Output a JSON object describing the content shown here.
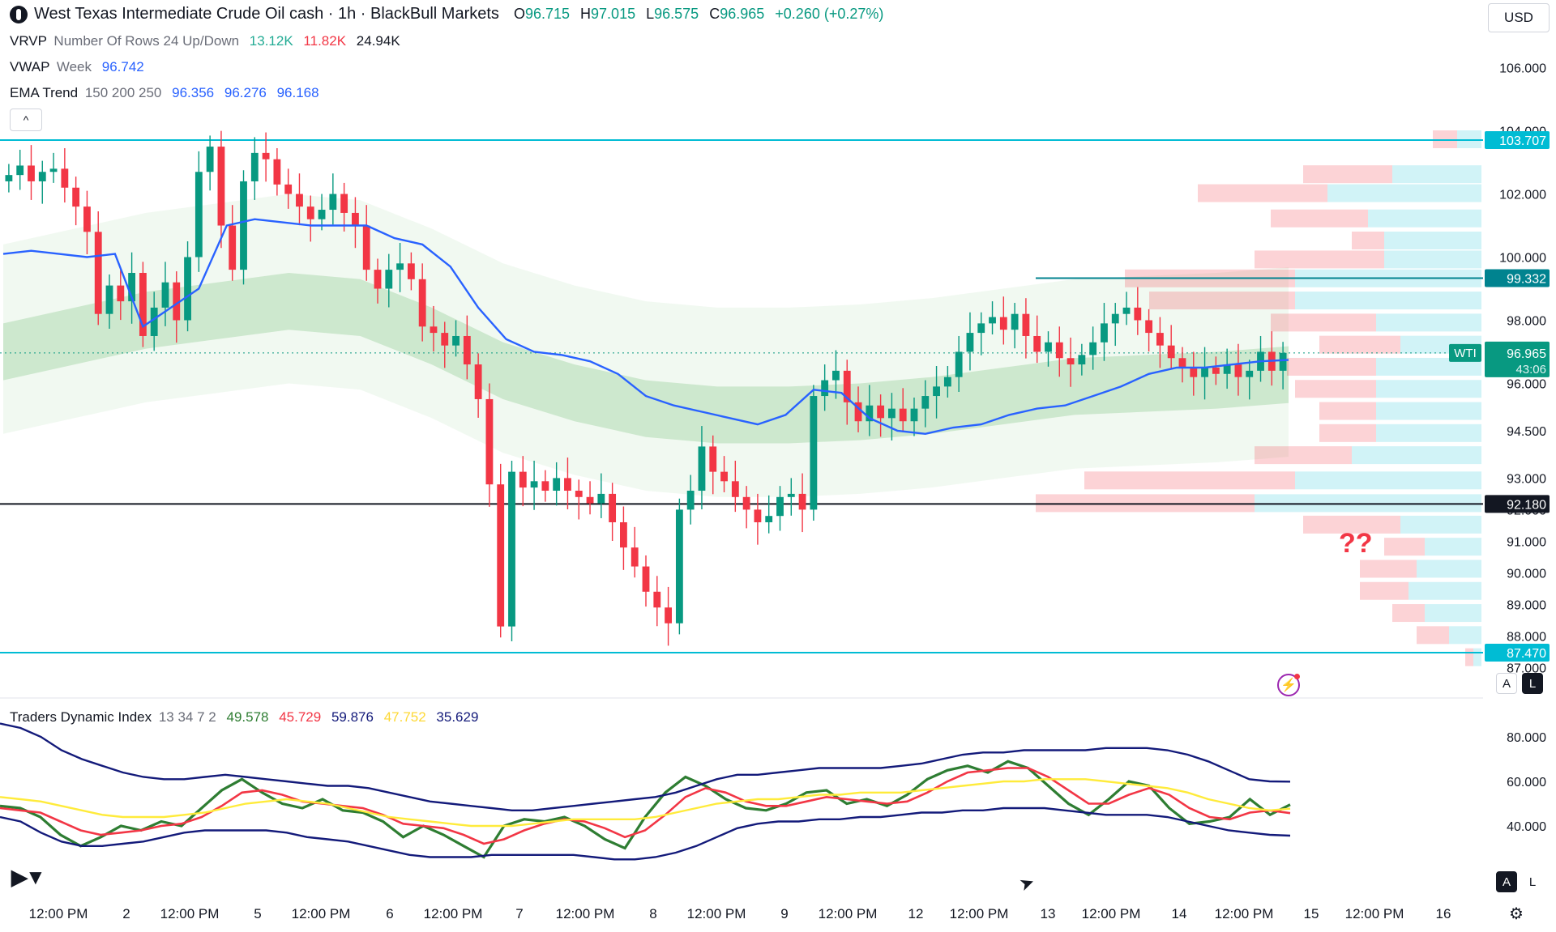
{
  "header": {
    "title": "West Texas Intermediate Crude Oil cash · 1h · BlackBull Markets",
    "o_label": "O",
    "o": "96.715",
    "h_label": "H",
    "h": "97.015",
    "l_label": "L",
    "l": "96.575",
    "c_label": "C",
    "c": "96.965",
    "change": "+0.260 (+0.27%)",
    "currency": "USD"
  },
  "indicators": {
    "vrvp": {
      "name": "VRVP",
      "params": "Number Of Rows 24 Up/Down",
      "v1": "13.12K",
      "v2": "11.82K",
      "v3": "24.94K"
    },
    "vwap": {
      "name": "VWAP",
      "params": "Week",
      "v1": "96.742"
    },
    "ema": {
      "name": "EMA Trend",
      "params": "150 200 250",
      "v1": "96.356",
      "v2": "96.276",
      "v3": "96.168"
    },
    "tdi": {
      "name": "Traders Dynamic Index",
      "params": "13 34 7 2",
      "v1": "49.578",
      "v2": "45.729",
      "v3": "59.876",
      "v4": "47.752",
      "v5": "35.629"
    }
  },
  "colors": {
    "up": "#089981",
    "down": "#f23645",
    "vwap": "#2962ff",
    "level": "#00bcd4",
    "tdi_green": "#2e7d32",
    "tdi_red": "#f23645",
    "tdi_navy": "#131a7a",
    "tdi_yellow": "#ffeb3b"
  },
  "controls": {
    "collapse_icon": "chevron-up-icon",
    "auto": "A",
    "log": "L",
    "settings_icon": "gear-icon",
    "brand": "tradingview-logo"
  },
  "annotation": "??",
  "chart_data": [
    {
      "type": "candlestick",
      "symbol_tag": "WTI",
      "last_price": "96.965",
      "countdown": "43:06",
      "y_ticks": [
        "106.000",
        "104.000",
        "102.000",
        "100.000",
        "98.000",
        "96.000",
        "94.500",
        "93.000",
        "92.000",
        "91.000",
        "90.000",
        "89.000",
        "88.000",
        "87.000"
      ],
      "ylim": [
        86.8,
        107.0
      ],
      "x_ticks": [
        "12:00 PM",
        "2",
        "12:00 PM",
        "5",
        "12:00 PM",
        "6",
        "12:00 PM",
        "7",
        "12:00 PM",
        "8",
        "12:00 PM",
        "9",
        "12:00 PM",
        "12",
        "12:00 PM",
        "13",
        "12:00 PM",
        "14",
        "12:00 PM",
        "15",
        "12:00 PM",
        "16"
      ],
      "horizontal_levels": [
        {
          "price": 103.707,
          "label": "103.707",
          "color": "#00bcd4"
        },
        {
          "price": 99.332,
          "label": "99.332",
          "color": "#00838f"
        },
        {
          "price": 92.18,
          "label": "92.180",
          "color": "#131722"
        },
        {
          "price": 87.47,
          "label": "87.470",
          "color": "#00bcd4"
        }
      ],
      "price_path": [
        102.6,
        102.9,
        102.4,
        102.7,
        102.8,
        102.2,
        101.6,
        100.8,
        98.2,
        99.1,
        98.6,
        99.5,
        97.5,
        98.4,
        99.2,
        98.0,
        100.0,
        102.7,
        103.5,
        101.0,
        99.6,
        102.4,
        103.3,
        103.1,
        102.3,
        102.0,
        101.6,
        101.2,
        101.5,
        102.0,
        101.4,
        101.0,
        99.6,
        99.0,
        99.6,
        99.8,
        99.3,
        97.8,
        97.6,
        97.2,
        97.5,
        96.6,
        95.5,
        92.8,
        88.3,
        93.2,
        92.7,
        92.9,
        92.6,
        93.0,
        92.6,
        92.4,
        92.2,
        92.5,
        91.6,
        90.8,
        90.2,
        89.4,
        88.9,
        88.4,
        92.0,
        92.6,
        94.0,
        93.2,
        92.9,
        92.4,
        92.0,
        91.6,
        91.8,
        92.4,
        92.5,
        92.0,
        95.6,
        96.1,
        96.4,
        95.4,
        94.8,
        95.3,
        94.9,
        95.2,
        94.8,
        95.2,
        95.6,
        95.9,
        96.2,
        97.0,
        97.6,
        97.9,
        98.1,
        97.7,
        98.2,
        97.5,
        97.0,
        97.3,
        96.8,
        96.6,
        96.9,
        97.3,
        97.9,
        98.2,
        98.4,
        98.0,
        97.6,
        97.2,
        96.8,
        96.5,
        96.2,
        96.5,
        96.3,
        96.6,
        96.2,
        96.4,
        97.0,
        96.4,
        96.965
      ],
      "vwap_path": [
        100.1,
        100.2,
        100.1,
        100.0,
        100.1,
        97.8,
        98.4,
        99.0,
        101.0,
        101.2,
        101.1,
        101.0,
        101.0,
        101.0,
        100.6,
        100.4,
        99.7,
        98.4,
        97.4,
        97.0,
        96.9,
        96.7,
        96.3,
        95.6,
        95.3,
        95.1,
        94.9,
        94.7,
        95.0,
        95.8,
        95.7,
        94.9,
        94.5,
        94.4,
        94.6,
        94.7,
        95.0,
        95.2,
        95.3,
        95.6,
        95.9,
        96.3,
        96.5,
        96.5,
        96.6,
        96.7,
        96.742
      ],
      "ema_path": [
        97.0,
        97.5,
        98.0,
        98.3,
        98.6,
        98.4,
        97.5,
        96.4,
        95.7,
        95.2,
        95.0,
        95.0,
        95.1,
        95.3,
        95.6,
        95.9,
        96.0,
        96.1,
        96.276
      ],
      "volume_profile_rows": [
        {
          "price": 103.707,
          "up": 0.3,
          "down": 0.3
        },
        {
          "price": 102.6,
          "up": 1.1,
          "down": 1.1
        },
        {
          "price": 102.0,
          "up": 1.9,
          "down": 1.6
        },
        {
          "price": 101.2,
          "up": 1.4,
          "down": 1.2
        },
        {
          "price": 100.5,
          "up": 1.2,
          "down": 0.4
        },
        {
          "price": 99.9,
          "up": 1.2,
          "down": 1.6
        },
        {
          "price": 99.3,
          "up": 2.3,
          "down": 2.1
        },
        {
          "price": 98.6,
          "up": 2.3,
          "down": 1.8
        },
        {
          "price": 97.9,
          "up": 1.3,
          "down": 1.3
        },
        {
          "price": 97.2,
          "up": 1.0,
          "down": 1.0
        },
        {
          "price": 96.5,
          "up": 1.3,
          "down": 1.1
        },
        {
          "price": 95.8,
          "up": 1.3,
          "down": 1.0
        },
        {
          "price": 95.1,
          "up": 1.3,
          "down": 0.7
        },
        {
          "price": 94.4,
          "up": 1.3,
          "down": 0.7
        },
        {
          "price": 93.7,
          "up": 1.6,
          "down": 1.2
        },
        {
          "price": 92.9,
          "up": 2.3,
          "down": 2.6
        },
        {
          "price": 92.18,
          "up": 2.8,
          "down": 2.7
        },
        {
          "price": 91.5,
          "up": 1.0,
          "down": 1.2
        },
        {
          "price": 90.8,
          "up": 0.7,
          "down": 0.5
        },
        {
          "price": 90.1,
          "up": 0.8,
          "down": 0.7
        },
        {
          "price": 89.4,
          "up": 0.9,
          "down": 0.6
        },
        {
          "price": 88.7,
          "up": 0.7,
          "down": 0.4
        },
        {
          "price": 88.0,
          "up": 0.4,
          "down": 0.4
        },
        {
          "price": 87.3,
          "up": 0.1,
          "down": 0.1
        }
      ]
    },
    {
      "type": "line",
      "title": "Traders Dynamic Index",
      "y_ticks": [
        "80.000",
        "60.000",
        "40.000"
      ],
      "ylim": [
        18,
        95
      ],
      "series": [
        {
          "name": "49.578",
          "color": "#2e7d32",
          "values": [
            49,
            48,
            44,
            36,
            31,
            35,
            40,
            38,
            42,
            40,
            48,
            56,
            61,
            55,
            50,
            48,
            52,
            47,
            46,
            42,
            35,
            40,
            36,
            31,
            26,
            40,
            43,
            42,
            44,
            40,
            34,
            30,
            44,
            55,
            62,
            58,
            52,
            48,
            47,
            50,
            55,
            56,
            50,
            52,
            49,
            54,
            61,
            65,
            67,
            64,
            69,
            66,
            58,
            50,
            45,
            52,
            60,
            58,
            48,
            41,
            42,
            44,
            52,
            45,
            49.578
          ]
        },
        {
          "name": "45.729",
          "color": "#f23645",
          "values": [
            48,
            47,
            46,
            42,
            38,
            36,
            37,
            38,
            40,
            41,
            44,
            49,
            55,
            56,
            54,
            51,
            50,
            49,
            48,
            45,
            41,
            40,
            39,
            36,
            32,
            34,
            38,
            41,
            43,
            42,
            39,
            35,
            38,
            45,
            53,
            57,
            55,
            51,
            49,
            49,
            51,
            53,
            52,
            51,
            50,
            51,
            55,
            60,
            64,
            65,
            66,
            66,
            62,
            56,
            50,
            50,
            54,
            57,
            54,
            48,
            44,
            43,
            46,
            47,
            45.729
          ]
        },
        {
          "name": "59.876",
          "color": "#131a7a",
          "values": [
            86,
            84,
            80,
            74,
            70,
            67,
            64,
            62,
            61,
            61,
            62,
            63,
            62,
            61,
            60,
            59,
            58,
            58,
            57,
            55,
            53,
            51,
            50,
            49,
            48,
            47,
            47,
            48,
            49,
            50,
            51,
            52,
            53,
            55,
            58,
            61,
            63,
            63,
            64,
            65,
            66,
            66,
            66,
            66,
            67,
            68,
            70,
            72,
            73,
            73,
            74,
            74,
            74,
            74,
            75,
            75,
            75,
            74,
            72,
            69,
            65,
            61,
            60,
            59.876
          ]
        },
        {
          "name": "47.752",
          "color": "#ffeb3b",
          "values": [
            53,
            52,
            51,
            49,
            47,
            45,
            44,
            44,
            44,
            45,
            46,
            48,
            50,
            51,
            52,
            51,
            50,
            48,
            46,
            44,
            43,
            42,
            41,
            40,
            40,
            40,
            41,
            42,
            43,
            43,
            43,
            43,
            44,
            46,
            48,
            50,
            51,
            52,
            52,
            53,
            54,
            54,
            55,
            55,
            55,
            56,
            57,
            58,
            59,
            60,
            60,
            61,
            61,
            61,
            60,
            59,
            58,
            57,
            55,
            52,
            50,
            48,
            47,
            47.752
          ]
        },
        {
          "name": "35.629",
          "color": "#131a7a",
          "values": [
            44,
            42,
            37,
            33,
            31,
            31,
            32,
            33,
            35,
            37,
            38,
            38,
            38,
            38,
            37,
            35,
            34,
            33,
            31,
            29,
            27,
            26,
            26,
            26,
            27,
            27,
            27,
            27,
            27,
            26,
            25,
            25,
            26,
            28,
            31,
            35,
            39,
            41,
            42,
            42,
            43,
            43,
            44,
            44,
            45,
            46,
            46,
            47,
            47,
            48,
            48,
            48,
            47,
            46,
            45,
            45,
            45,
            44,
            42,
            40,
            38,
            37,
            36,
            35.629
          ]
        }
      ]
    }
  ]
}
